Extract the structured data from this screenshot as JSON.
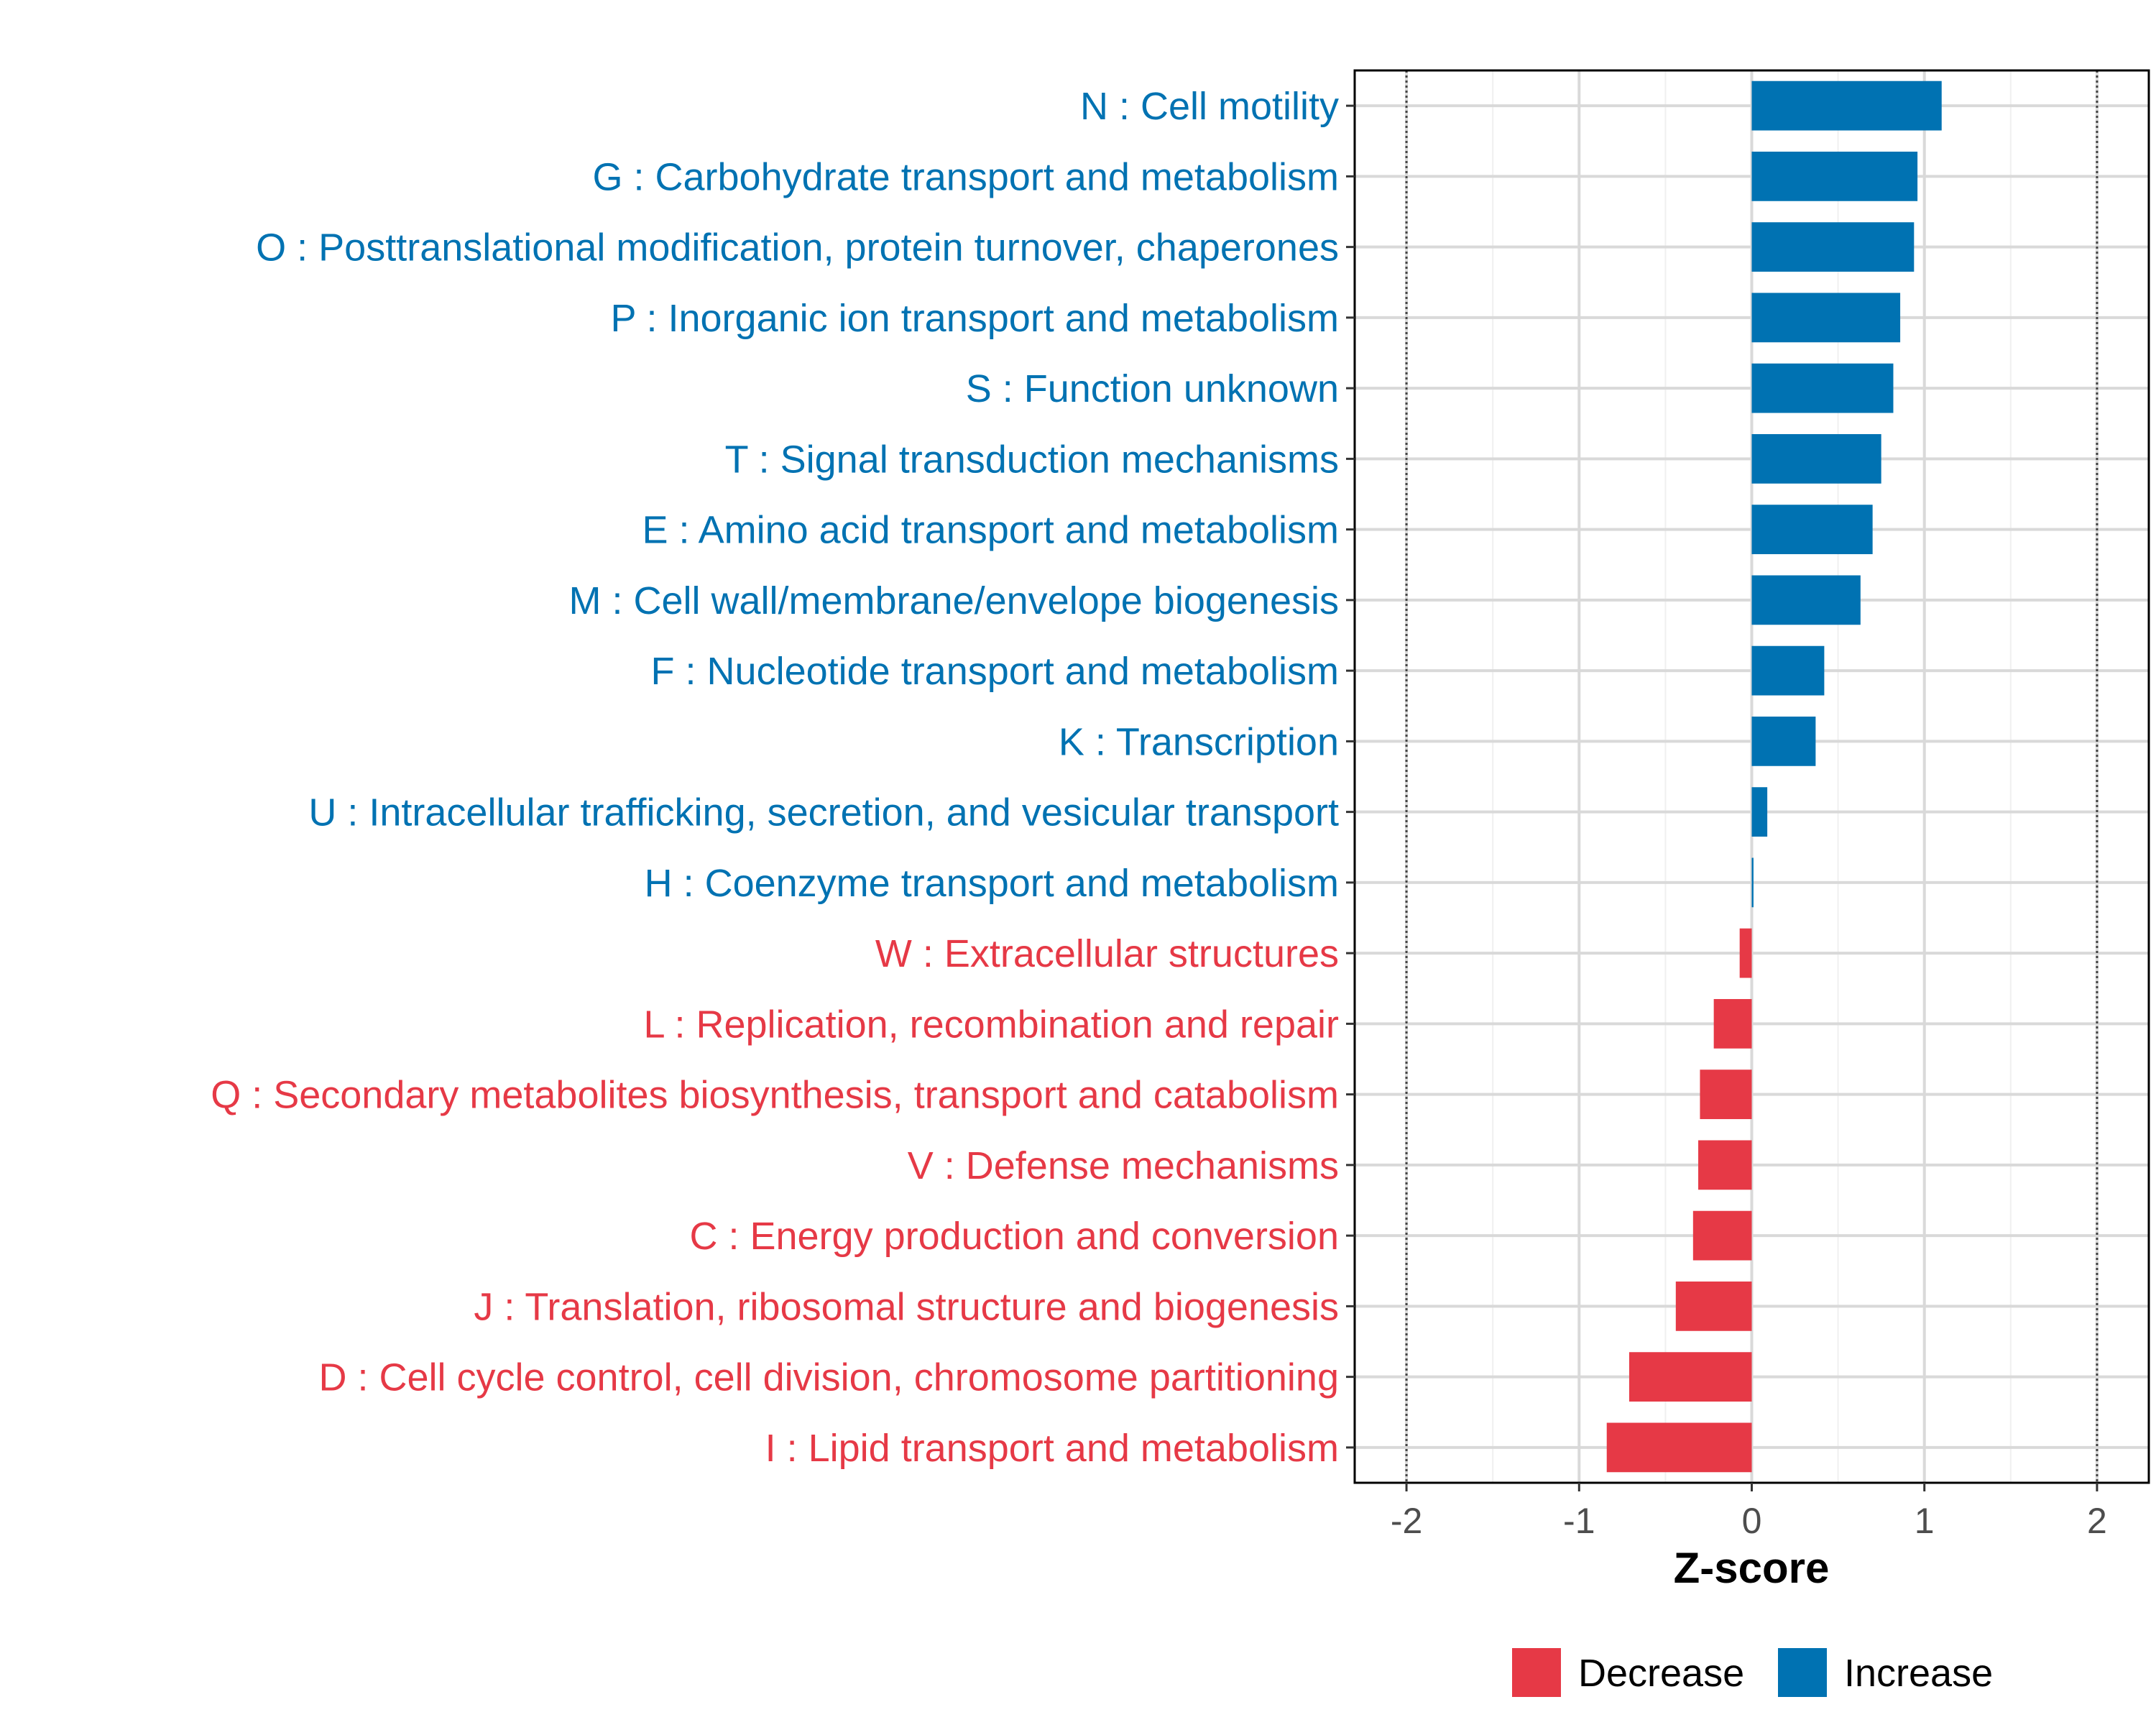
{
  "chart_data": {
    "type": "bar",
    "orientation": "horizontal",
    "xlabel": "Z-score",
    "ylabel": "",
    "xlim": [
      -2.3,
      2.3
    ],
    "xticks": [
      -2,
      -1,
      0,
      1,
      2
    ],
    "xtick_labels": [
      "-2",
      "-1",
      "0",
      "1",
      "2"
    ],
    "reference_lines": [
      -2,
      2
    ],
    "grid": true,
    "colors": {
      "Decrease": "#e63946",
      "Increase": "#0072b2"
    },
    "legend": {
      "placement": "bottom",
      "entries": [
        "Decrease",
        "Increase"
      ]
    },
    "categories": [
      "N : Cell motility",
      "G : Carbohydrate transport and metabolism",
      "O : Posttranslational modification, protein turnover, chaperones",
      "P : Inorganic ion transport and metabolism",
      "S : Function unknown",
      "T : Signal transduction mechanisms",
      "E : Amino acid transport and metabolism",
      "M : Cell wall/membrane/envelope biogenesis",
      "F : Nucleotide transport and metabolism",
      "K : Transcription",
      "U : Intracellular trafficking, secretion, and vesicular transport",
      "H : Coenzyme transport and metabolism",
      "W : Extracellular structures",
      "L : Replication, recombination and repair",
      "Q : Secondary metabolites biosynthesis, transport and catabolism",
      "V : Defense mechanisms",
      "C : Energy production and conversion",
      "J : Translation, ribosomal structure and biogenesis",
      "D : Cell cycle control, cell division, chromosome partitioning",
      "I : Lipid transport and metabolism"
    ],
    "values": [
      1.1,
      0.96,
      0.94,
      0.86,
      0.82,
      0.75,
      0.7,
      0.63,
      0.42,
      0.37,
      0.09,
      0.01,
      -0.07,
      -0.22,
      -0.3,
      -0.31,
      -0.34,
      -0.44,
      -0.71,
      -0.84
    ],
    "groups": [
      "Increase",
      "Increase",
      "Increase",
      "Increase",
      "Increase",
      "Increase",
      "Increase",
      "Increase",
      "Increase",
      "Increase",
      "Increase",
      "Increase",
      "Decrease",
      "Decrease",
      "Decrease",
      "Decrease",
      "Decrease",
      "Decrease",
      "Decrease",
      "Decrease"
    ]
  }
}
